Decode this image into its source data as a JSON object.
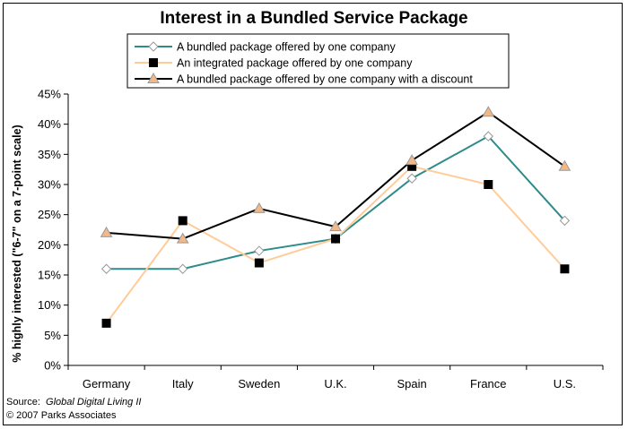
{
  "chart_data": {
    "type": "line",
    "title": "Interest in a Bundled Service Package",
    "ylabel": "% highly interested (\"6-7\" on a 7-point scale)",
    "xlabel": "",
    "categories": [
      "Germany",
      "Italy",
      "Sweden",
      "U.K.",
      "Spain",
      "France",
      "U.S."
    ],
    "ylim": [
      0,
      45
    ],
    "yticks": [
      "0%",
      "5%",
      "10%",
      "15%",
      "20%",
      "25%",
      "30%",
      "35%",
      "40%",
      "45%"
    ],
    "grid": false,
    "legend_placement": "top",
    "series": [
      {
        "name": "A bundled package offered by one company",
        "values": [
          16,
          16,
          19,
          21,
          31,
          38,
          24
        ],
        "line_color": "#2e8b8b",
        "marker": "diamond",
        "marker_fill": "#ffffff",
        "marker_stroke": "#999999"
      },
      {
        "name": "An integrated package offered by one company",
        "values": [
          7,
          24,
          17,
          21,
          33,
          30,
          16
        ],
        "line_color": "#ffcc99",
        "marker": "square",
        "marker_fill": "#000000",
        "marker_stroke": "#000000"
      },
      {
        "name": "A bundled package offered by one company with a discount",
        "values": [
          22,
          21,
          26,
          23,
          34,
          42,
          33
        ],
        "line_color": "#000000",
        "marker": "triangle",
        "marker_fill": "#f2b888",
        "marker_stroke": "#999999"
      }
    ]
  },
  "footer": {
    "source_prefix": "Source:",
    "source_name": "Global Digital Living II",
    "copyright": "© 2007 Parks Associates"
  }
}
